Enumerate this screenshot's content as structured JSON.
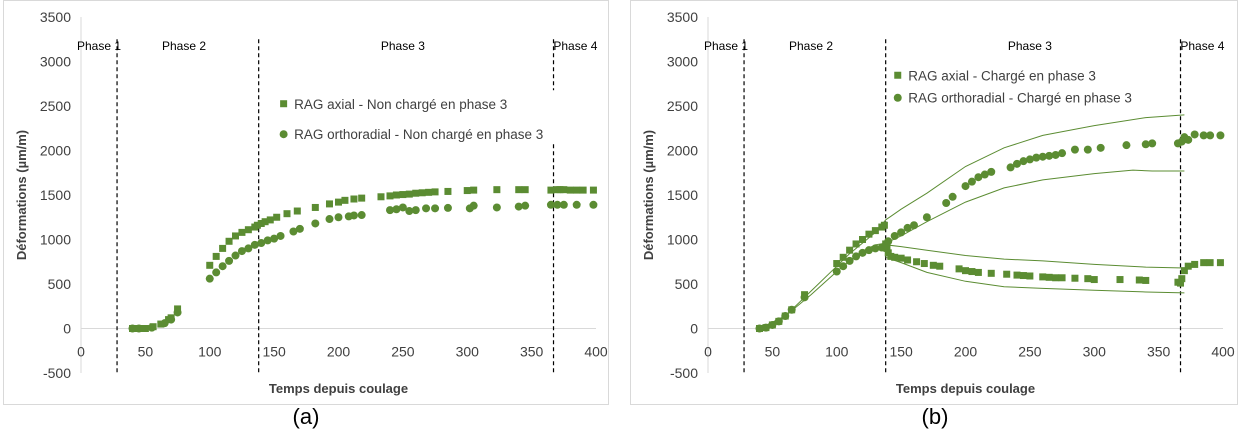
{
  "colors": {
    "series": "#5b8c32",
    "axis": "#d9d9d9",
    "phase_line": "#000000",
    "text": "#404040"
  },
  "chart_data": [
    {
      "type": "scatter",
      "panel_label": "(a)",
      "xlabel": "Temps depuis coulage",
      "ylabel": "Déformations (µm/m)",
      "xlim": [
        0,
        400
      ],
      "ylim": [
        -500,
        3500
      ],
      "xticks": [
        0,
        50,
        100,
        150,
        200,
        250,
        300,
        350,
        400
      ],
      "yticks": [
        -500,
        0,
        500,
        1000,
        1500,
        2000,
        2500,
        3000,
        3500
      ],
      "phase_lines": [
        28,
        138,
        367
      ],
      "phases": [
        {
          "label": "Phase 1",
          "x": 14
        },
        {
          "label": "Phase 2",
          "x": 80
        },
        {
          "label": "Phase 3",
          "x": 250
        },
        {
          "label": "Phase 4",
          "x": 384
        }
      ],
      "legend": [
        "RAG axial - Non chargé en phase 3",
        "RAG orthoradial - Non chargé en phase 3"
      ],
      "series": [
        {
          "name": "RAG axial - Non chargé en phase 3",
          "marker": "square",
          "points": [
            [
              40,
              0
            ],
            [
              43,
              0
            ],
            [
              46,
              0
            ],
            [
              50,
              0
            ],
            [
              56,
              20
            ],
            [
              62,
              50
            ],
            [
              68,
              100
            ],
            [
              70,
              120
            ],
            [
              75,
              220
            ],
            [
              100,
              710
            ],
            [
              105,
              810
            ],
            [
              110,
              900
            ],
            [
              115,
              980
            ],
            [
              120,
              1040
            ],
            [
              125,
              1080
            ],
            [
              130,
              1110
            ],
            [
              135,
              1140
            ],
            [
              137,
              1160
            ],
            [
              140,
              1180
            ],
            [
              143,
              1200
            ],
            [
              147,
              1220
            ],
            [
              152,
              1250
            ],
            [
              160,
              1290
            ],
            [
              168,
              1320
            ],
            [
              182,
              1360
            ],
            [
              193,
              1400
            ],
            [
              200,
              1420
            ],
            [
              205,
              1440
            ],
            [
              212,
              1455
            ],
            [
              218,
              1465
            ],
            [
              233,
              1480
            ],
            [
              240,
              1490
            ],
            [
              245,
              1500
            ],
            [
              250,
              1505
            ],
            [
              255,
              1510
            ],
            [
              260,
              1520
            ],
            [
              265,
              1525
            ],
            [
              270,
              1530
            ],
            [
              275,
              1535
            ],
            [
              285,
              1540
            ],
            [
              300,
              1550
            ],
            [
              305,
              1555
            ],
            [
              323,
              1560
            ],
            [
              340,
              1560
            ],
            [
              345,
              1560
            ],
            [
              365,
              1555
            ],
            [
              370,
              1560
            ],
            [
              372,
              1560
            ],
            [
              375,
              1560
            ],
            [
              380,
              1555
            ],
            [
              385,
              1555
            ],
            [
              390,
              1555
            ],
            [
              398,
              1555
            ]
          ]
        },
        {
          "name": "RAG orthoradial - Non chargé en phase 3",
          "marker": "circle",
          "points": [
            [
              40,
              0
            ],
            [
              45,
              0
            ],
            [
              55,
              10
            ],
            [
              65,
              60
            ],
            [
              70,
              100
            ],
            [
              75,
              180
            ],
            [
              100,
              560
            ],
            [
              105,
              630
            ],
            [
              110,
              700
            ],
            [
              115,
              760
            ],
            [
              120,
              820
            ],
            [
              125,
              870
            ],
            [
              130,
              900
            ],
            [
              135,
              940
            ],
            [
              140,
              960
            ],
            [
              145,
              990
            ],
            [
              150,
              1010
            ],
            [
              155,
              1040
            ],
            [
              165,
              1090
            ],
            [
              170,
              1120
            ],
            [
              182,
              1180
            ],
            [
              193,
              1230
            ],
            [
              200,
              1250
            ],
            [
              208,
              1260
            ],
            [
              212,
              1270
            ],
            [
              218,
              1275
            ],
            [
              240,
              1330
            ],
            [
              245,
              1340
            ],
            [
              250,
              1360
            ],
            [
              255,
              1320
            ],
            [
              260,
              1330
            ],
            [
              268,
              1350
            ],
            [
              275,
              1350
            ],
            [
              285,
              1355
            ],
            [
              302,
              1350
            ],
            [
              305,
              1380
            ],
            [
              323,
              1360
            ],
            [
              340,
              1370
            ],
            [
              345,
              1380
            ],
            [
              365,
              1390
            ],
            [
              370,
              1390
            ],
            [
              375,
              1390
            ],
            [
              385,
              1390
            ],
            [
              398,
              1390
            ]
          ]
        }
      ]
    },
    {
      "type": "scatter",
      "panel_label": "(b)",
      "xlabel": "Temps depuis coulage",
      "ylabel": "Déformations (µm/m)",
      "xlim": [
        0,
        400
      ],
      "ylim": [
        -500,
        3500
      ],
      "xticks": [
        0,
        50,
        100,
        150,
        200,
        250,
        300,
        350,
        400
      ],
      "yticks": [
        -500,
        0,
        500,
        1000,
        1500,
        2000,
        2500,
        3000,
        3500
      ],
      "phase_lines": [
        28,
        138,
        367
      ],
      "phases": [
        {
          "label": "Phase 1",
          "x": 14
        },
        {
          "label": "Phase 2",
          "x": 80
        },
        {
          "label": "Phase 3",
          "x": 250
        },
        {
          "label": "Phase 4",
          "x": 384
        }
      ],
      "legend": [
        "RAG axial - Chargé en phase 3",
        "RAG orthoradial - Chargé en phase 3"
      ],
      "series": [
        {
          "name": "RAG axial - Chargé en phase 3",
          "marker": "square",
          "points": [
            [
              40,
              0
            ],
            [
              45,
              10
            ],
            [
              50,
              40
            ],
            [
              55,
              80
            ],
            [
              60,
              140
            ],
            [
              65,
              210
            ],
            [
              75,
              380
            ],
            [
              100,
              730
            ],
            [
              105,
              800
            ],
            [
              110,
              880
            ],
            [
              115,
              950
            ],
            [
              120,
              1000
            ],
            [
              125,
              1060
            ],
            [
              130,
              1100
            ],
            [
              135,
              1140
            ],
            [
              137,
              1160
            ],
            [
              138,
              950
            ],
            [
              139,
              900
            ],
            [
              140,
              850
            ],
            [
              142,
              810
            ],
            [
              145,
              800
            ],
            [
              150,
              790
            ],
            [
              155,
              770
            ],
            [
              162,
              750
            ],
            [
              168,
              730
            ],
            [
              175,
              710
            ],
            [
              180,
              700
            ],
            [
              195,
              670
            ],
            [
              200,
              650
            ],
            [
              205,
              640
            ],
            [
              210,
              630
            ],
            [
              220,
              620
            ],
            [
              232,
              610
            ],
            [
              240,
              600
            ],
            [
              245,
              595
            ],
            [
              250,
              590
            ],
            [
              260,
              580
            ],
            [
              265,
              575
            ],
            [
              270,
              570
            ],
            [
              275,
              570
            ],
            [
              285,
              565
            ],
            [
              295,
              560
            ],
            [
              300,
              550
            ],
            [
              320,
              550
            ],
            [
              335,
              545
            ],
            [
              340,
              540
            ],
            [
              365,
              520
            ],
            [
              367,
              510
            ],
            [
              368,
              560
            ],
            [
              370,
              650
            ],
            [
              373,
              700
            ],
            [
              378,
              720
            ],
            [
              385,
              740
            ],
            [
              390,
              740
            ],
            [
              398,
              740
            ]
          ]
        },
        {
          "name": "RAG orthoradial - Chargé en phase 3",
          "marker": "circle",
          "points": [
            [
              40,
              0
            ],
            [
              45,
              10
            ],
            [
              50,
              40
            ],
            [
              55,
              80
            ],
            [
              60,
              140
            ],
            [
              65,
              210
            ],
            [
              75,
              350
            ],
            [
              100,
              640
            ],
            [
              105,
              700
            ],
            [
              110,
              760
            ],
            [
              115,
              810
            ],
            [
              120,
              850
            ],
            [
              125,
              880
            ],
            [
              130,
              900
            ],
            [
              135,
              910
            ],
            [
              138,
              930
            ],
            [
              140,
              980
            ],
            [
              145,
              1040
            ],
            [
              150,
              1080
            ],
            [
              155,
              1130
            ],
            [
              160,
              1160
            ],
            [
              170,
              1250
            ],
            [
              185,
              1410
            ],
            [
              190,
              1480
            ],
            [
              200,
              1600
            ],
            [
              205,
              1650
            ],
            [
              210,
              1700
            ],
            [
              215,
              1730
            ],
            [
              220,
              1760
            ],
            [
              235,
              1810
            ],
            [
              240,
              1850
            ],
            [
              245,
              1880
            ],
            [
              250,
              1900
            ],
            [
              255,
              1920
            ],
            [
              260,
              1930
            ],
            [
              265,
              1940
            ],
            [
              270,
              1950
            ],
            [
              275,
              1970
            ],
            [
              285,
              2010
            ],
            [
              295,
              2010
            ],
            [
              305,
              2030
            ],
            [
              325,
              2060
            ],
            [
              340,
              2070
            ],
            [
              345,
              2080
            ],
            [
              365,
              2080
            ],
            [
              368,
              2100
            ],
            [
              370,
              2150
            ],
            [
              373,
              2120
            ],
            [
              378,
              2180
            ],
            [
              385,
              2170
            ],
            [
              390,
              2170
            ],
            [
              398,
              2170
            ]
          ]
        }
      ],
      "envelope_lines": [
        [
          [
            40,
            0
          ],
          [
            60,
            140
          ],
          [
            80,
            420
          ],
          [
            100,
            700
          ],
          [
            110,
            840
          ],
          [
            120,
            960
          ],
          [
            130,
            1080
          ],
          [
            138,
            1220
          ],
          [
            150,
            1340
          ],
          [
            170,
            1520
          ],
          [
            200,
            1820
          ],
          [
            230,
            2030
          ],
          [
            260,
            2170
          ],
          [
            300,
            2280
          ],
          [
            340,
            2370
          ],
          [
            370,
            2400
          ]
        ],
        [
          [
            40,
            0
          ],
          [
            60,
            140
          ],
          [
            80,
            380
          ],
          [
            100,
            640
          ],
          [
            110,
            760
          ],
          [
            120,
            870
          ],
          [
            130,
            940
          ],
          [
            138,
            960
          ],
          [
            150,
            1040
          ],
          [
            170,
            1200
          ],
          [
            200,
            1420
          ],
          [
            230,
            1580
          ],
          [
            260,
            1670
          ],
          [
            300,
            1740
          ],
          [
            330,
            1780
          ],
          [
            345,
            1770
          ],
          [
            370,
            1770
          ]
        ],
        [
          [
            138,
            940
          ],
          [
            150,
            920
          ],
          [
            170,
            880
          ],
          [
            200,
            820
          ],
          [
            230,
            780
          ],
          [
            260,
            760
          ],
          [
            300,
            720
          ],
          [
            340,
            690
          ],
          [
            370,
            680
          ]
        ],
        [
          [
            138,
            800
          ],
          [
            150,
            740
          ],
          [
            170,
            630
          ],
          [
            200,
            530
          ],
          [
            230,
            470
          ],
          [
            260,
            450
          ],
          [
            300,
            430
          ],
          [
            340,
            410
          ],
          [
            370,
            400
          ]
        ]
      ]
    }
  ]
}
